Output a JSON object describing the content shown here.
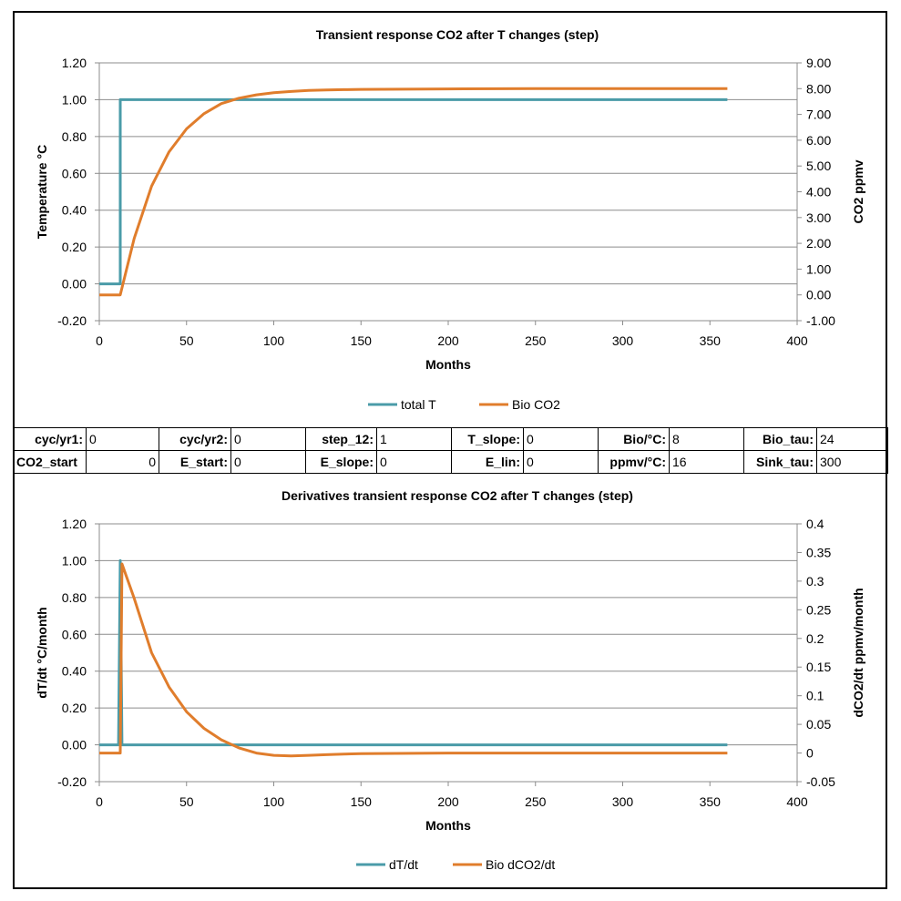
{
  "chart_data": [
    {
      "type": "line",
      "title": "Transient response CO2 after T changes (step)",
      "xlabel": "Months",
      "ylabel": "Temperature °C",
      "y2label": "CO2 ppmv",
      "xlim": [
        0,
        400
      ],
      "xticks": [
        "0",
        "50",
        "100",
        "150",
        "200",
        "250",
        "300",
        "350",
        "400"
      ],
      "ylim": [
        -0.2,
        1.2
      ],
      "yticks": [
        "-0.20",
        "0.00",
        "0.20",
        "0.40",
        "0.60",
        "0.80",
        "1.00",
        "1.20"
      ],
      "y2lim": [
        -1,
        9
      ],
      "y2ticks": [
        "-1.00",
        "0.00",
        "1.00",
        "2.00",
        "3.00",
        "4.00",
        "5.00",
        "6.00",
        "7.00",
        "8.00",
        "9.00"
      ],
      "grid": true,
      "legend_position": "bottom",
      "series": [
        {
          "name": "total T",
          "axis": "left",
          "color": "#4A9BA8",
          "points": [
            [
              0,
              0
            ],
            [
              12,
              0
            ],
            [
              12,
              1
            ],
            [
              360,
              1
            ]
          ]
        },
        {
          "name": "Bio CO2",
          "axis": "right",
          "color": "#E07D2C",
          "points": [
            [
              0,
              0
            ],
            [
              12,
              0
            ],
            [
              20,
              2.19
            ],
            [
              30,
              4.22
            ],
            [
              40,
              5.55
            ],
            [
              50,
              6.44
            ],
            [
              60,
              7.03
            ],
            [
              70,
              7.42
            ],
            [
              80,
              7.63
            ],
            [
              90,
              7.76
            ],
            [
              100,
              7.84
            ],
            [
              110,
              7.89
            ],
            [
              120,
              7.93
            ],
            [
              130,
              7.95
            ],
            [
              140,
              7.96
            ],
            [
              150,
              7.97
            ],
            [
              200,
              7.99
            ],
            [
              250,
              8.0
            ],
            [
              300,
              8.0
            ],
            [
              360,
              8.0
            ]
          ]
        }
      ]
    },
    {
      "type": "line",
      "title": "Derivatives transient response CO2 after T changes (step)",
      "xlabel": "Months",
      "ylabel": "dT/dt  °C/month",
      "y2label": "dCO2/dt ppmv/month",
      "xlim": [
        0,
        400
      ],
      "xticks": [
        "0",
        "50",
        "100",
        "150",
        "200",
        "250",
        "300",
        "350",
        "400"
      ],
      "ylim": [
        -0.2,
        1.2
      ],
      "yticks": [
        "-0.20",
        "0.00",
        "0.20",
        "0.40",
        "0.60",
        "0.80",
        "1.00",
        "1.20"
      ],
      "y2lim": [
        -0.05,
        0.4
      ],
      "y2ticks": [
        "-0.05",
        "0",
        "0.05",
        "0.1",
        "0.15",
        "0.2",
        "0.25",
        "0.3",
        "0.35",
        "0.4"
      ],
      "grid": true,
      "legend_position": "bottom",
      "series": [
        {
          "name": "dT/dt",
          "axis": "left",
          "color": "#4A9BA8",
          "points": [
            [
              0,
              0
            ],
            [
              11,
              0
            ],
            [
              12,
              1
            ],
            [
              13,
              0
            ],
            [
              360,
              0
            ]
          ]
        },
        {
          "name": "Bio dCO2/dt",
          "axis": "right",
          "color": "#E07D2C",
          "points": [
            [
              0,
              0
            ],
            [
              12,
              0
            ],
            [
              13,
              0.33
            ],
            [
              20,
              0.27
            ],
            [
              30,
              0.175
            ],
            [
              40,
              0.115
            ],
            [
              50,
              0.072
            ],
            [
              60,
              0.043
            ],
            [
              70,
              0.023
            ],
            [
              80,
              0.009
            ],
            [
              90,
              0.0
            ],
            [
              100,
              -0.004
            ],
            [
              110,
              -0.005
            ],
            [
              120,
              -0.004
            ],
            [
              130,
              -0.003
            ],
            [
              140,
              -0.002
            ],
            [
              150,
              -0.001
            ],
            [
              200,
              0
            ],
            [
              360,
              0
            ]
          ]
        }
      ]
    }
  ],
  "params": {
    "row1": [
      {
        "label": "cyc/yr1:",
        "value": "0"
      },
      {
        "label": "cyc/yr2:",
        "value": "0"
      },
      {
        "label": "step_12:",
        "value": "1"
      },
      {
        "label": "T_slope:",
        "value": "0"
      },
      {
        "label": "Bio/°C:",
        "value": "8"
      },
      {
        "label": "Bio_tau:",
        "value": "24"
      }
    ],
    "row2": [
      {
        "label": "CO2_start",
        "value": "0"
      },
      {
        "label": "E_start:",
        "value": "0"
      },
      {
        "label": "E_slope:",
        "value": "0"
      },
      {
        "label": "E_lin:",
        "value": "0"
      },
      {
        "label": "ppmv/°C:",
        "value": "16"
      },
      {
        "label": "Sink_tau:",
        "value": "300"
      }
    ]
  }
}
